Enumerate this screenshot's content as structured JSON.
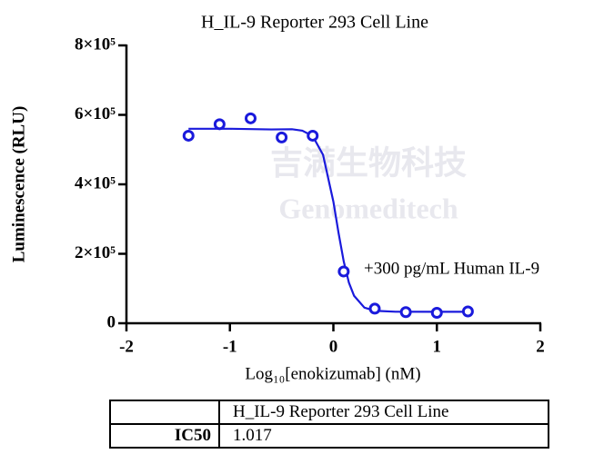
{
  "chart_data": {
    "type": "dose-response",
    "title": "H_IL-9 Reporter 293 Cell Line",
    "x_label": "Log₁₀[enokizumab] (nM)",
    "y_label": "Luminescence (RLU)",
    "annotation": "+300 pg/mL Human IL-9",
    "xlim": [
      -2,
      2
    ],
    "xticks": [
      -2,
      -1,
      0,
      1,
      2
    ],
    "ylim": [
      0,
      800000
    ],
    "yticks": [
      0,
      {
        "value": 200000,
        "label": "2×10⁵"
      },
      {
        "value": 400000,
        "label": "4×10⁵"
      },
      {
        "value": 600000,
        "label": "6×10⁵"
      },
      {
        "value": 800000,
        "label": "8×10⁵"
      }
    ],
    "series": [
      {
        "kind": "points",
        "color": "#1a1adc",
        "x": [
          -1.4,
          -1.1,
          -0.8,
          -0.5,
          -0.2,
          0.1,
          0.4,
          0.7,
          1.0,
          1.3
        ],
        "values": [
          540000,
          573000,
          590000,
          535000,
          540000,
          149000,
          42000,
          32000,
          30000,
          34000
        ]
      },
      {
        "kind": "curve",
        "color": "#1a1adc",
        "x": [
          -1.4,
          -1.0,
          -0.6,
          -0.4,
          -0.3,
          -0.2,
          -0.1,
          0,
          0.05,
          0.1,
          0.15,
          0.2,
          0.3,
          0.4,
          0.6,
          1.0,
          1.3
        ],
        "values": [
          560000,
          560000,
          558000,
          558600,
          554500,
          539000,
          485000,
          350000,
          260000,
          178000,
          117000,
          79000,
          45000,
          36000,
          33200,
          33000,
          33000
        ]
      }
    ]
  },
  "watermark": [
    "吉满生物科技",
    "Genomeditech"
  ],
  "table": {
    "header": [
      "H_IL-9 Reporter 293 Cell Line"
    ],
    "rows": [
      [
        "IC50",
        "1.017"
      ]
    ]
  }
}
